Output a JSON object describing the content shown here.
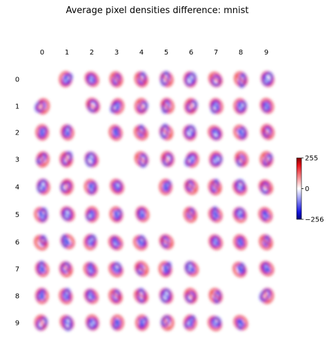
{
  "chart_data": {
    "type": "heatmap",
    "title": "Average pixel densities difference: mnist",
    "row_labels": [
      "0",
      "1",
      "2",
      "3",
      "4",
      "5",
      "6",
      "7",
      "8",
      "9"
    ],
    "col_labels": [
      "0",
      "1",
      "2",
      "3",
      "4",
      "5",
      "6",
      "7",
      "8",
      "9"
    ],
    "diagonal": "empty",
    "cells": "row digit minus column digit average pixel density",
    "colormap": "bwr",
    "colorbar": {
      "ticks": [
        255,
        0,
        -256
      ],
      "tick_labels": [
        "255",
        "0",
        "−256"
      ],
      "range": [
        -256,
        255
      ]
    },
    "colors": {
      "positive": "#e8111a",
      "zero": "#ffffff",
      "negative": "#1414e0"
    },
    "axes": "off",
    "grid": false
  }
}
